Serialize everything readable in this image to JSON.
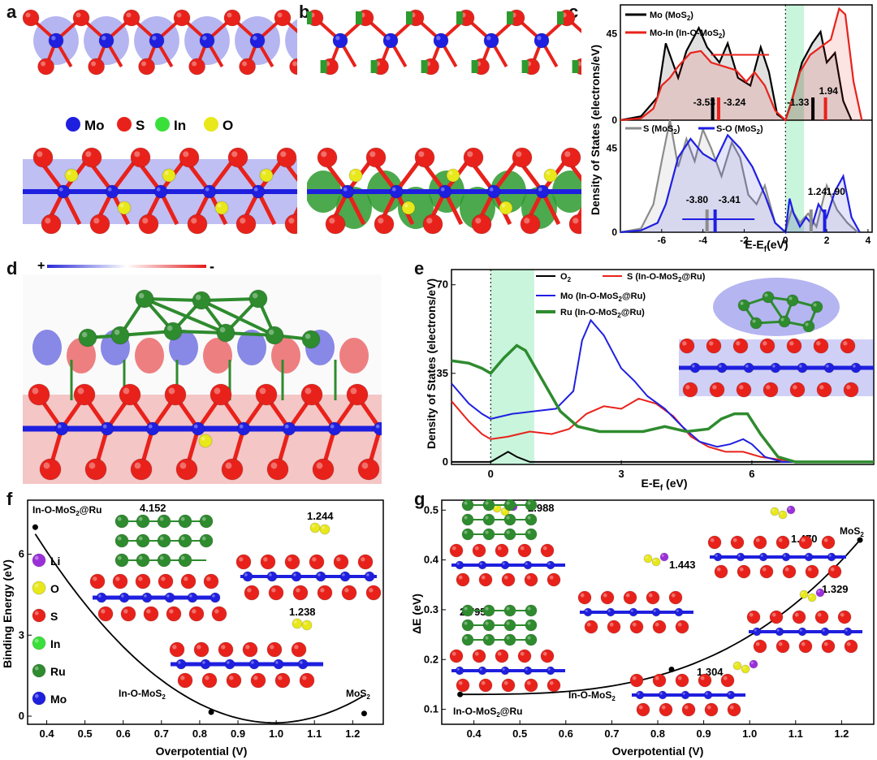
{
  "panel_labels": {
    "a": "a",
    "b": "b",
    "c": "c",
    "d": "d",
    "e": "e",
    "f": "f",
    "g": "g"
  },
  "legend_ab": {
    "mo": "Mo",
    "s": "S",
    "in": "In",
    "o": "O"
  },
  "colors": {
    "mo": "#1f1fe0",
    "s": "#e8221b",
    "in": "#3ae03a",
    "o": "#e8e81a",
    "ru": "#2e8b2e",
    "li": "#9b30d9",
    "charge_pos": "#2a2ad6",
    "charge_neg": "#e31a1c",
    "deplete": "#2e9a2e",
    "band": "#c8f5dc"
  },
  "panel_d": {
    "plus": "+",
    "minus": "-"
  },
  "chart_data": [
    {
      "id": "c-top",
      "type": "line",
      "ylabel": "Density of States (electrons/eV)",
      "xlabel": "E-E_f(eV)",
      "xlim": [
        -8,
        4.2
      ],
      "ylim": [
        0,
        60
      ],
      "xticks": [
        -6,
        -4,
        -2,
        0,
        2,
        4
      ],
      "yticks": [
        0,
        45
      ],
      "series": [
        {
          "name": "Mo (MoS2)",
          "color": "#000000",
          "x": [
            -8,
            -7,
            -6.2,
            -5.8,
            -5.2,
            -4.8,
            -4.2,
            -3.8,
            -3.2,
            -2.8,
            -2.3,
            -1.7,
            -1.2,
            -0.8,
            -0.4,
            0,
            0.3,
            0.8,
            1.3,
            1.7,
            2,
            2.4,
            2.8,
            3.2
          ],
          "y": [
            0,
            2,
            12,
            40,
            22,
            36,
            48,
            38,
            30,
            40,
            22,
            18,
            38,
            25,
            3,
            0,
            10,
            30,
            40,
            46,
            30,
            35,
            10,
            0
          ]
        },
        {
          "name": "Mo-In (In-O-MoS2)",
          "color": "#e8221b",
          "x": [
            -8,
            -7,
            -6.4,
            -6,
            -5.6,
            -5.2,
            -4.6,
            -4.1,
            -3.6,
            -3,
            -2.4,
            -1.9,
            -1.5,
            -1,
            -0.5,
            0,
            0.2,
            0.7,
            1.2,
            1.7,
            2.2,
            2.6,
            2.9,
            3.3,
            3.7
          ],
          "y": [
            0,
            1,
            6,
            18,
            22,
            28,
            35,
            36,
            30,
            28,
            26,
            20,
            25,
            18,
            5,
            0,
            6,
            25,
            34,
            38,
            42,
            58,
            55,
            20,
            0
          ]
        }
      ],
      "annotations": [
        "-3.53",
        "-3.24",
        "-1.33",
        "1.94"
      ]
    },
    {
      "id": "c-bottom",
      "type": "line",
      "xlim": [
        -8,
        4.2
      ],
      "ylim": [
        0,
        60
      ],
      "xticks": [
        -6,
        -4,
        -2,
        0,
        2,
        4
      ],
      "yticks": [
        0,
        45
      ],
      "series": [
        {
          "name": "S (MoS2)",
          "color": "#8c8c8c",
          "x": [
            -8,
            -7,
            -6.4,
            -6,
            -5.6,
            -5.2,
            -4.8,
            -4.4,
            -4,
            -3.6,
            -3.1,
            -2.6,
            -2.2,
            -1.8,
            -1.4,
            -1,
            -0.5,
            0,
            0.3,
            0.7,
            1.1,
            1.5,
            2,
            2.5,
            3,
            3.5
          ],
          "y": [
            0,
            2,
            15,
            38,
            60,
            35,
            50,
            38,
            55,
            45,
            30,
            48,
            40,
            20,
            15,
            25,
            5,
            0,
            12,
            5,
            10,
            3,
            25,
            12,
            5,
            0
          ]
        },
        {
          "name": "S-O (MoS2)",
          "color": "#1f1fe0",
          "x": [
            -8,
            -7,
            -6.2,
            -5.8,
            -5.2,
            -4.6,
            -4,
            -3.4,
            -2.8,
            -2.2,
            -1.6,
            -1,
            -0.5,
            0,
            0.2,
            0.4,
            0.7,
            1,
            1.3,
            1.6,
            2,
            2.4,
            2.8,
            3.2,
            3.6
          ],
          "y": [
            0,
            1,
            5,
            15,
            40,
            50,
            42,
            38,
            52,
            45,
            35,
            20,
            5,
            0,
            18,
            10,
            3,
            8,
            4,
            15,
            8,
            22,
            30,
            8,
            0
          ]
        }
      ],
      "annotations": [
        "-3.80",
        "-3.41",
        "1.24",
        "1.90"
      ]
    },
    {
      "id": "e",
      "type": "line",
      "ylabel": "Density of States (electrons/eV)",
      "xlabel": "E-E_f (eV)",
      "xlim": [
        -0.9,
        8.8
      ],
      "ylim": [
        -1,
        76
      ],
      "xticks": [
        0,
        3,
        6
      ],
      "yticks": [
        0,
        35,
        70
      ],
      "series": [
        {
          "name": "O2",
          "color": "#000000",
          "x": [
            -0.9,
            0,
            0.2,
            0.4,
            0.6,
            0.9,
            8.8
          ],
          "y": [
            0,
            0,
            2,
            4,
            2,
            0,
            0
          ]
        },
        {
          "name": "S (In-O-MoS2@Ru)",
          "color": "#e8221b",
          "x": [
            -0.9,
            -0.5,
            -0.2,
            0,
            0.4,
            0.9,
            1.4,
            1.8,
            2.2,
            2.6,
            3,
            3.4,
            3.8,
            4.2,
            4.6,
            5,
            5.4,
            5.8,
            6.2,
            6.6,
            7,
            8.8
          ],
          "y": [
            24,
            16,
            11,
            9,
            10,
            12,
            11,
            13,
            19,
            22,
            21,
            25,
            23,
            18,
            10,
            6,
            4,
            4,
            2,
            1,
            0,
            0
          ]
        },
        {
          "name": "Mo (In-O-MoS2@Ru)",
          "color": "#1f1fe0",
          "x": [
            -0.9,
            -0.5,
            -0.2,
            0,
            0.5,
            1,
            1.5,
            1.9,
            2.1,
            2.3,
            2.6,
            3,
            3.3,
            3.6,
            4,
            4.4,
            4.8,
            5.2,
            5.5,
            5.8,
            6,
            6.3,
            6.7,
            7,
            8.8
          ],
          "y": [
            31,
            23,
            19,
            17,
            19,
            20,
            21,
            28,
            48,
            56,
            50,
            37,
            32,
            26,
            21,
            14,
            8,
            6,
            7,
            9,
            7,
            2,
            0,
            0,
            0
          ]
        },
        {
          "name": "Ru (In-O-MoS2@Ru)",
          "color": "#2e8b2e",
          "x": [
            -0.9,
            -0.5,
            -0.2,
            0,
            0.3,
            0.6,
            0.8,
            1.2,
            1.6,
            2,
            2.5,
            3,
            3.5,
            4,
            4.5,
            5,
            5.3,
            5.6,
            5.9,
            6.2,
            6.6,
            7,
            8.8
          ],
          "y": [
            40,
            39,
            37,
            35,
            41,
            46,
            44,
            32,
            20,
            14,
            12,
            12,
            12,
            14,
            12,
            13,
            17,
            19,
            19,
            11,
            2,
            0,
            0
          ]
        }
      ]
    },
    {
      "id": "f",
      "type": "line",
      "ylabel": "Binding Energy (eV)",
      "xlabel": "Overpotential (V)",
      "xlim": [
        0.35,
        1.28
      ],
      "ylim": [
        -0.3,
        8
      ],
      "xticks": [
        0.4,
        0.5,
        0.6,
        0.7,
        0.8,
        0.9,
        1.0,
        1.1,
        1.2
      ],
      "yticks": [
        0,
        3,
        6
      ],
      "points": [
        {
          "label": "In-O-MoS2@Ru",
          "x": 0.37,
          "y": 7.0
        },
        {
          "label": "In-O-MoS2",
          "x": 0.83,
          "y": 0.15
        },
        {
          "label": "MoS2",
          "x": 1.23,
          "y": 0.1
        }
      ],
      "annotations": [
        "4.152",
        "1.244",
        "1.238"
      ],
      "legend": [
        "Li",
        "O",
        "S",
        "In",
        "Ru",
        "Mo"
      ]
    },
    {
      "id": "g",
      "type": "line",
      "ylabel": "ΔE (eV)",
      "xlabel": "Overpotential  (V)",
      "xlim": [
        0.33,
        1.27
      ],
      "ylim": [
        0.07,
        0.52
      ],
      "xticks": [
        0.4,
        0.5,
        0.6,
        0.7,
        0.8,
        0.9,
        1.0,
        1.1,
        1.2
      ],
      "yticks": [
        0.1,
        0.2,
        0.3,
        0.4,
        0.5
      ],
      "points": [
        {
          "label": "In-O-MoS2@Ru",
          "x": 0.37,
          "y": 0.13
        },
        {
          "label": "In-O-MoS2",
          "x": 0.83,
          "y": 0.18
        },
        {
          "label": "MoS2",
          "x": 1.24,
          "y": 0.44
        }
      ],
      "annotations": [
        "2.988",
        "2.795",
        "1.443",
        "1.470",
        "1.329",
        "1.304"
      ]
    }
  ],
  "text": {
    "c_leg_mo": "Mo (MoS",
    "c_leg_moin": "Mo-In (In-O-MoS",
    "c_leg_s": "S (MoS",
    "c_leg_so": "S-O (MoS",
    "e_leg_o2": "O",
    "e_leg_s": "S (In-O-MoS",
    "e_leg_mo": "Mo (In-O-MoS",
    "e_leg_ru": "Ru (In-O-MoS",
    "ru_suffix": "@Ru)",
    "f_top": "In-O-MoS",
    "f_top2": "@Ru",
    "f_mid": "In-O-MoS",
    "f_right": "MoS",
    "g_left": "In-O-MoS",
    "g_left2": "@Ru",
    "g_mid": "In-O-MoS",
    "g_right": "MoS",
    "sub2": "2",
    "close_paren": ")"
  }
}
